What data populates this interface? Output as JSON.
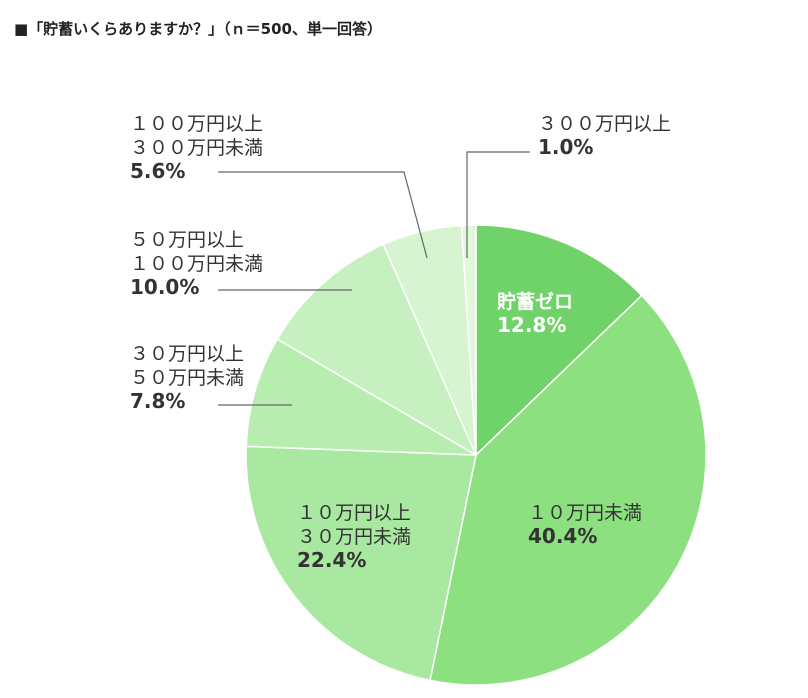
{
  "chart_data": {
    "type": "pie",
    "title": "■「貯蓄いくらありますか？」（ｎ＝500、単一回答）",
    "legend": "none",
    "slices": [
      {
        "label": [
          "貯蓄ゼロ"
        ],
        "value": 12.8,
        "display": "12.8%",
        "color": "#6fd36a"
      },
      {
        "label": [
          "１０万円未満"
        ],
        "value": 40.4,
        "display": "40.4%",
        "color": "#8ce07f"
      },
      {
        "label": [
          "１０万円以上",
          "３０万円未満"
        ],
        "value": 22.4,
        "display": "22.4%",
        "color": "#a8e8a0"
      },
      {
        "label": [
          "３０万円以上",
          "５０万円未満"
        ],
        "value": 7.8,
        "display": "7.8%",
        "color": "#b8edb0"
      },
      {
        "label": [
          "５０万円以上",
          "１００万円未満"
        ],
        "value": 10.0,
        "display": "10.0%",
        "color": "#c6f0bf"
      },
      {
        "label": [
          "１００万円以上",
          "３００万円未満"
        ],
        "value": 5.6,
        "display": "5.6%",
        "color": "#d5f4cf"
      },
      {
        "label": [
          "３００万円以上"
        ],
        "value": 1.0,
        "display": "1.0%",
        "color": "#e2f7de"
      }
    ]
  }
}
